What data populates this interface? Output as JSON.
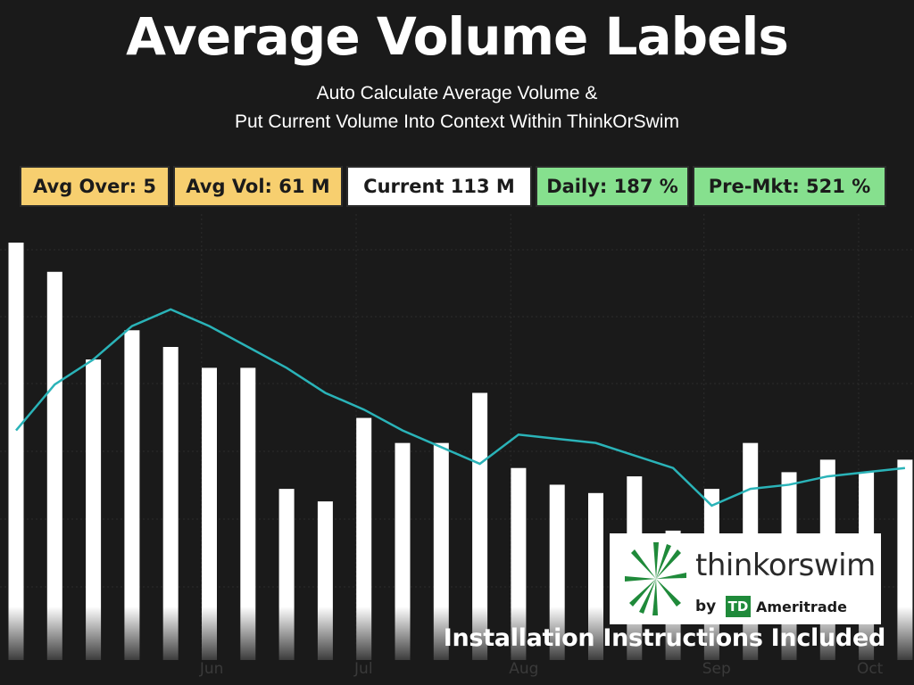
{
  "title": "Average Volume Labels",
  "subtitle_line1": "Auto Calculate Average Volume &",
  "subtitle_line2": "Put Current Volume Into Context Within ThinkOrSwim",
  "labels": [
    {
      "text": "Avg Over: 5",
      "color": "#f7cf6f"
    },
    {
      "text": "Avg Vol: 61 M",
      "color": "#f7cf6f"
    },
    {
      "text": "Current 113 M",
      "color": "#ffffff"
    },
    {
      "text": "Daily: 187 %",
      "color": "#86e08e"
    },
    {
      "text": "Pre-Mkt: 521 %",
      "color": "#86e08e"
    }
  ],
  "footer_text": "Installation Instructions Included",
  "logo": {
    "name": "thinkorswim",
    "by": "by",
    "td": "TD",
    "company": "Ameritrade",
    "brand_color": "#1f8a3a"
  },
  "colors": {
    "background": "#1a1a1a",
    "bar": "#ffffff",
    "avg_line": "#2ab3b8",
    "grid": "#2c2c2c"
  },
  "chart_data": {
    "type": "bar",
    "xlabel": "",
    "ylabel": "",
    "grid": true,
    "ylim": [
      0,
      100
    ],
    "month_ticks": [
      {
        "label": "Jun",
        "index": 4.8
      },
      {
        "label": "Jul",
        "index": 8.8
      },
      {
        "label": "Aug",
        "index": 12.8
      },
      {
        "label": "Sep",
        "index": 17.8
      },
      {
        "label": "Oct",
        "index": 21.8
      }
    ],
    "series": [
      {
        "type": "bar",
        "values": [
          100,
          93,
          72,
          79,
          75,
          70,
          70,
          41,
          38,
          58,
          52,
          52,
          64,
          46,
          42,
          40,
          44,
          31,
          41,
          52,
          45,
          48,
          45,
          48
        ]
      },
      {
        "type": "line",
        "values": [
          55,
          66,
          72,
          80,
          84,
          80,
          75,
          70,
          64,
          60,
          55,
          51,
          47,
          54,
          53,
          52,
          49,
          46,
          37,
          41,
          42,
          44,
          45,
          46
        ]
      }
    ]
  }
}
